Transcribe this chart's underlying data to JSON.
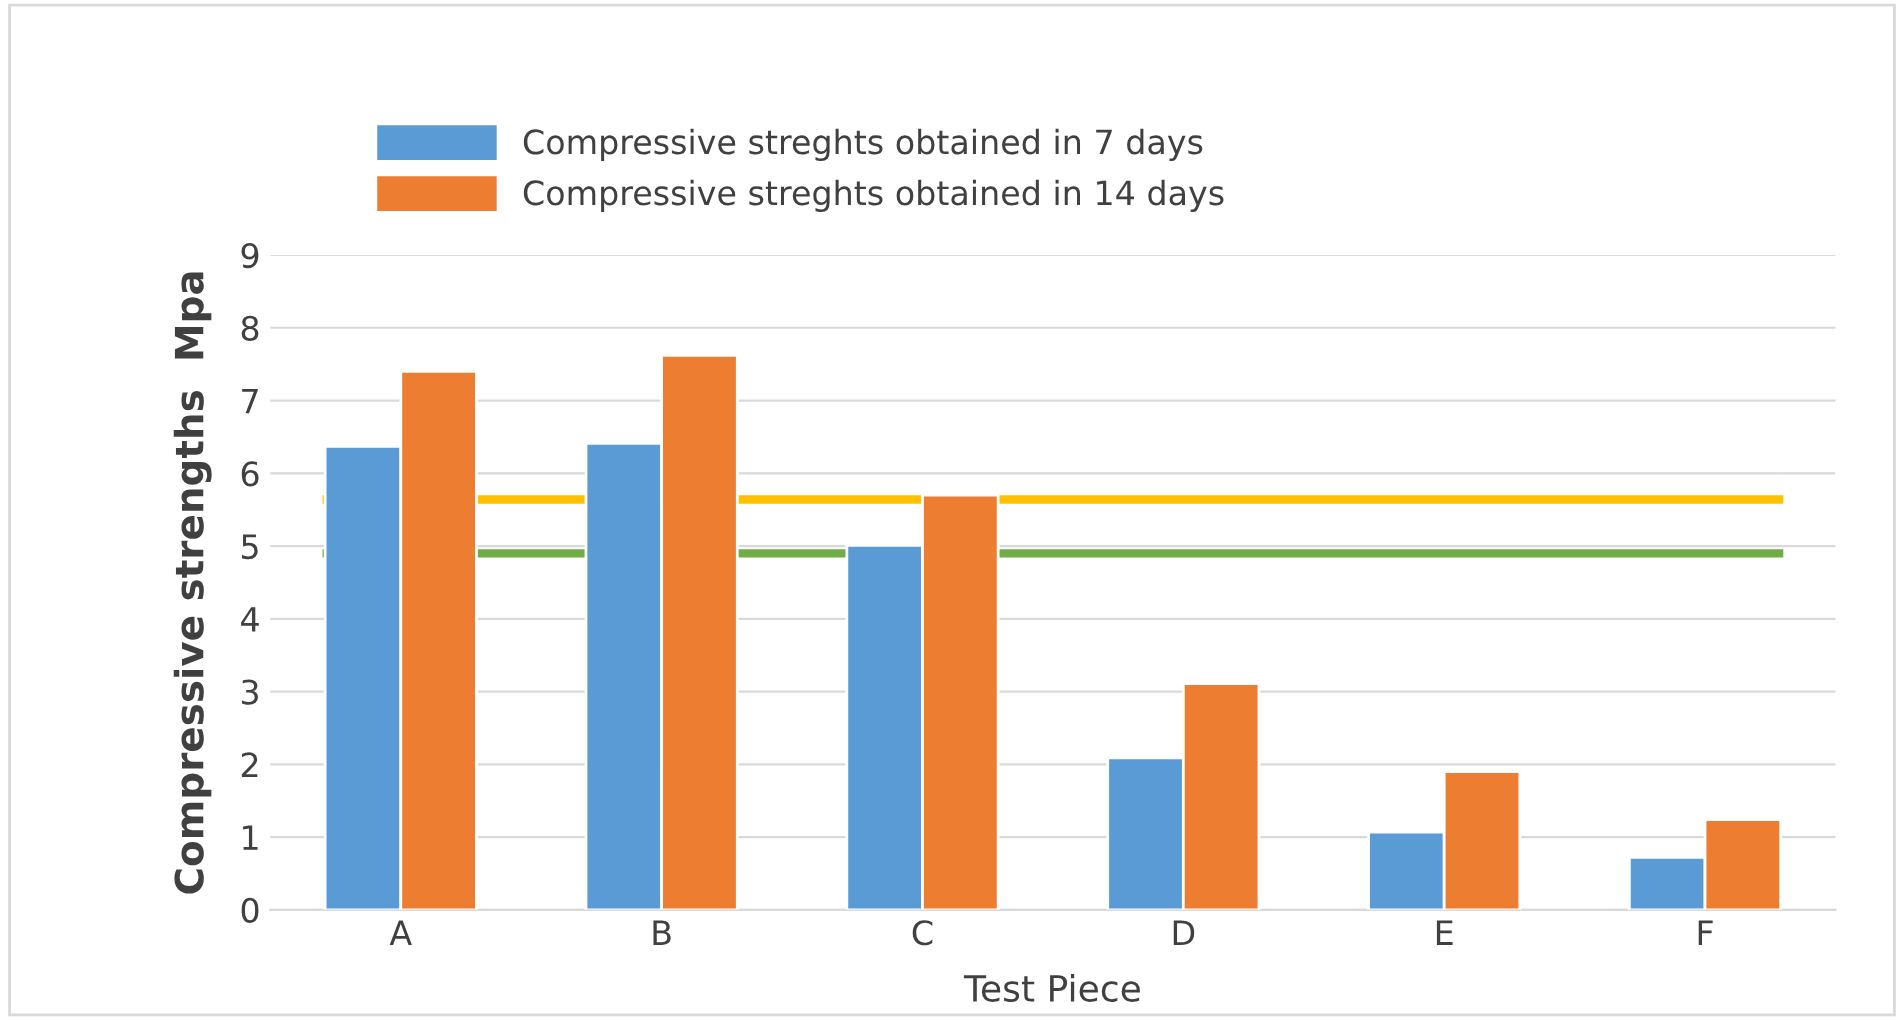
{
  "chart_data": {
    "type": "bar",
    "xlabel": "Test Piece",
    "ylabel": "Compressive strengths  Mpa",
    "categories": [
      "A",
      "B",
      "C",
      "D",
      "E",
      "F"
    ],
    "series": [
      {
        "name": "Compressive streghts obtained in 7 days",
        "color": "#5b9bd5",
        "values": [
          6.37,
          6.41,
          5.01,
          2.09,
          1.07,
          0.72
        ]
      },
      {
        "name": "Compressive streghts obtained in 14 days",
        "color": "#ed7d31",
        "values": [
          7.4,
          7.62,
          5.7,
          3.11,
          1.9,
          1.24
        ]
      }
    ],
    "ref_lines": [
      {
        "axis": "y",
        "value": 5.64,
        "color": "#ffc000"
      },
      {
        "axis": "y",
        "value": 4.9,
        "color": "#70ad47"
      }
    ],
    "ylim": [
      0,
      9
    ],
    "yticks": [
      0,
      1,
      2,
      3,
      4,
      5,
      6,
      7,
      8,
      9
    ],
    "grid": "y",
    "legend": "top left"
  }
}
